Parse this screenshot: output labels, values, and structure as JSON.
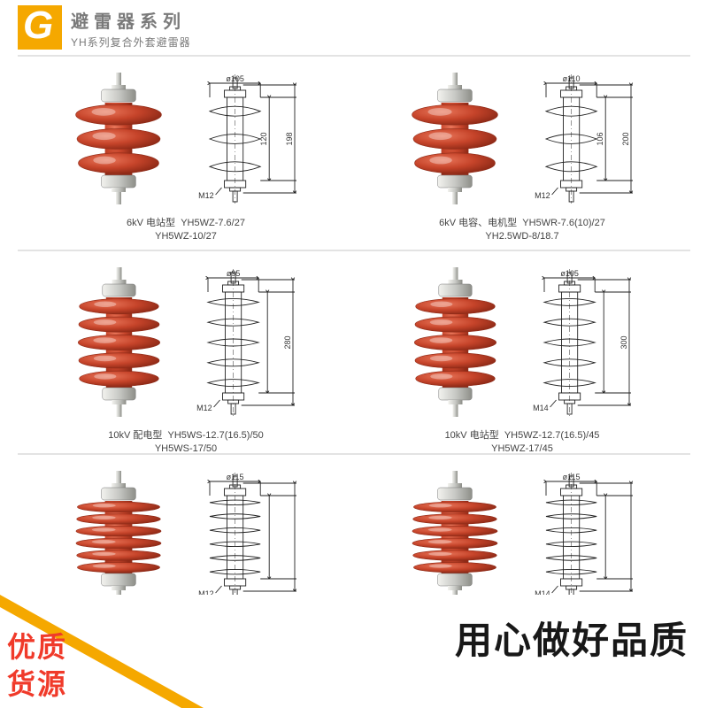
{
  "header": {
    "g_letter": "G",
    "title_cn": "避雷器系列",
    "subtitle": "YH系列复合外套避雷器"
  },
  "colors": {
    "arrester_body": "#c6442a",
    "arrester_body_dark": "#8f2a17",
    "metal": "#c8c9c5",
    "metal_dark": "#8d8e88",
    "diagram_stroke": "#222222",
    "accent_orange": "#f5a800",
    "badge_red": "#f03a2a"
  },
  "rows": [
    {
      "cells": [
        {
          "sheds": 3,
          "diagram": {
            "top_dia": "ø105",
            "bolt": "M12",
            "h_inner": 120,
            "h_outer": 198,
            "sheds": 3
          },
          "caption_line1": "6kV  电站型",
          "models": [
            "YH5WZ-7.6/27",
            "YH5WZ-10/27"
          ]
        },
        {
          "sheds": 3,
          "diagram": {
            "top_dia": "ø110",
            "bolt": "M12",
            "h_inner": 106,
            "h_outer": 200,
            "sheds": 3
          },
          "caption_line1": "6kV  电容、电机型",
          "models": [
            "YH5WR-7.6(10)/27",
            "YH2.5WD-8/18.7"
          ]
        }
      ]
    },
    {
      "cells": [
        {
          "sheds": 5,
          "diagram": {
            "top_dia": "ø95",
            "bolt": "M12",
            "h_inner": "",
            "h_outer": 280,
            "sheds": 5
          },
          "caption_line1": "10kV 配电型",
          "models": [
            "YH5WS-12.7(16.5)/50",
            "YH5WS-17/50"
          ]
        },
        {
          "sheds": 5,
          "diagram": {
            "top_dia": "ø105",
            "bolt": "M14",
            "h_inner": "",
            "h_outer": 300,
            "sheds": 5
          },
          "caption_line1": "10kV 电站型",
          "models": [
            "YH5WZ-12.7(16.5)/45",
            "YH5WZ-17/45"
          ]
        }
      ]
    },
    {
      "cells": [
        {
          "sheds": 6,
          "diagram": {
            "top_dia": "ø115",
            "bolt": "M12",
            "h_inner": "",
            "h_outer": "",
            "sheds": 6
          },
          "caption_line1": "",
          "models": []
        },
        {
          "sheds": 6,
          "diagram": {
            "top_dia": "ø115",
            "bolt": "M14",
            "h_inner": "",
            "h_outer": "",
            "sheds": 6
          },
          "caption_line1": "",
          "models": []
        }
      ]
    }
  ],
  "banner": {
    "badge_top": "优质",
    "badge_bot": "货源",
    "slogan": "用心做好品质"
  }
}
